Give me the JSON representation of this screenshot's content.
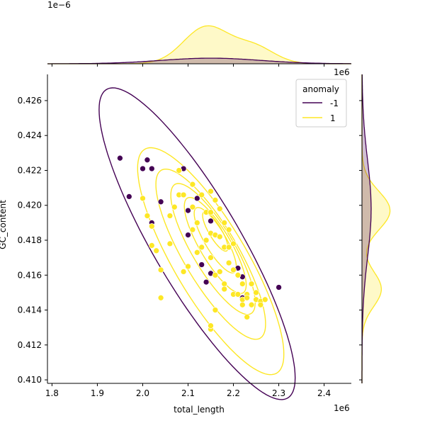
{
  "chart_data": {
    "type": "scatter",
    "title": "",
    "xlabel": "total_length",
    "ylabel": "GC_content",
    "x_offset_label": "1e6",
    "y_offset_label": "",
    "top_marginal_offset_label": "1e−6",
    "right_marginal_offset_label": "1e6",
    "xlim": [
      1.79,
      2.46
    ],
    "ylim": [
      0.4098,
      0.4275
    ],
    "xticks": [
      1.8,
      1.9,
      2.0,
      2.1,
      2.2,
      2.3,
      2.4
    ],
    "xtick_labels": [
      "1.8",
      "1.9",
      "2.0",
      "2.1",
      "2.2",
      "2.3",
      "2.4"
    ],
    "yticks": [
      0.41,
      0.412,
      0.414,
      0.416,
      0.418,
      0.42,
      0.422,
      0.424,
      0.426
    ],
    "ytick_labels": [
      "0.410",
      "0.412",
      "0.414",
      "0.416",
      "0.418",
      "0.420",
      "0.422",
      "0.424",
      "0.426"
    ],
    "grid": false,
    "legend": {
      "title": "anomaly",
      "placement": "top-right",
      "entries": [
        {
          "label": "-1",
          "color": "#440154"
        },
        {
          "label": "1",
          "color": "#fde725"
        }
      ]
    },
    "series": [
      {
        "name": "-1",
        "color": "#440154",
        "points": [
          [
            1.95,
            0.4227
          ],
          [
            1.97,
            0.4205
          ],
          [
            2.0,
            0.4221
          ],
          [
            2.01,
            0.4226
          ],
          [
            2.02,
            0.4221
          ],
          [
            2.02,
            0.419
          ],
          [
            2.04,
            0.4202
          ],
          [
            2.09,
            0.4221
          ],
          [
            2.1,
            0.4183
          ],
          [
            2.1,
            0.4197
          ],
          [
            2.12,
            0.4204
          ],
          [
            2.13,
            0.4166
          ],
          [
            2.14,
            0.4156
          ],
          [
            2.15,
            0.4191
          ],
          [
            2.15,
            0.4161
          ],
          [
            2.21,
            0.4164
          ],
          [
            2.22,
            0.4159
          ],
          [
            2.22,
            0.4147
          ],
          [
            2.23,
            0.4149
          ],
          [
            2.3,
            0.4153
          ]
        ]
      },
      {
        "name": "1",
        "color": "#fde725",
        "points": [
          [
            2.0,
            0.4204
          ],
          [
            2.01,
            0.4194
          ],
          [
            2.02,
            0.4188
          ],
          [
            2.02,
            0.4177
          ],
          [
            2.03,
            0.4174
          ],
          [
            2.04,
            0.4163
          ],
          [
            2.06,
            0.4194
          ],
          [
            2.06,
            0.4178
          ],
          [
            2.07,
            0.4199
          ],
          [
            2.08,
            0.422
          ],
          [
            2.08,
            0.4206
          ],
          [
            2.09,
            0.4206
          ],
          [
            2.09,
            0.4162
          ],
          [
            2.1,
            0.4165
          ],
          [
            2.11,
            0.4212
          ],
          [
            2.11,
            0.4199
          ],
          [
            2.11,
            0.4186
          ],
          [
            2.12,
            0.419
          ],
          [
            2.12,
            0.4173
          ],
          [
            2.13,
            0.4206
          ],
          [
            2.13,
            0.4176
          ],
          [
            2.14,
            0.4196
          ],
          [
            2.14,
            0.418
          ],
          [
            2.15,
            0.4208
          ],
          [
            2.15,
            0.4196
          ],
          [
            2.15,
            0.4184
          ],
          [
            2.15,
            0.417
          ],
          [
            2.16,
            0.4203
          ],
          [
            2.16,
            0.4183
          ],
          [
            2.16,
            0.416
          ],
          [
            2.17,
            0.4198
          ],
          [
            2.17,
            0.4182
          ],
          [
            2.17,
            0.4162
          ],
          [
            2.18,
            0.419
          ],
          [
            2.18,
            0.4176
          ],
          [
            2.18,
            0.4155
          ],
          [
            2.19,
            0.4186
          ],
          [
            2.19,
            0.4176
          ],
          [
            2.19,
            0.4167
          ],
          [
            2.2,
            0.4178
          ],
          [
            2.2,
            0.4163
          ],
          [
            2.2,
            0.4149
          ],
          [
            2.21,
            0.416
          ],
          [
            2.21,
            0.4149
          ],
          [
            2.22,
            0.4146
          ],
          [
            2.22,
            0.4143
          ],
          [
            2.22,
            0.4155
          ],
          [
            2.23,
            0.4149
          ],
          [
            2.23,
            0.4147
          ],
          [
            2.24,
            0.4155
          ],
          [
            2.24,
            0.4143
          ],
          [
            2.25,
            0.415
          ],
          [
            2.25,
            0.4146
          ],
          [
            2.26,
            0.4145
          ],
          [
            2.26,
            0.4143
          ],
          [
            2.27,
            0.4146
          ],
          [
            2.15,
            0.4129
          ],
          [
            2.15,
            0.4131
          ],
          [
            2.16,
            0.414
          ],
          [
            2.18,
            0.4152
          ],
          [
            2.23,
            0.4136
          ],
          [
            2.04,
            0.4147
          ]
        ]
      }
    ],
    "contours": [
      {
        "series": "-1",
        "color": "#440154",
        "levels": [
          {
            "center": [
              2.12,
              0.4178
            ],
            "sigma": [
              0.092,
              0.0038
            ],
            "rho": -0.86,
            "r": 2.35
          }
        ]
      },
      {
        "series": "1",
        "color": "#fde725",
        "levels": [
          {
            "center": [
              2.15,
              0.4168
            ],
            "sigma": [
              0.062,
              0.0025
            ],
            "rho": -0.82,
            "r": 2.6
          },
          {
            "center": [
              2.15,
              0.4172
            ],
            "sigma": [
              0.062,
              0.0025
            ],
            "rho": -0.82,
            "r": 1.95
          },
          {
            "center": [
              2.155,
              0.4175
            ],
            "sigma": [
              0.062,
              0.0025
            ],
            "rho": -0.82,
            "r": 1.5
          },
          {
            "center": [
              2.16,
              0.4177
            ],
            "sigma": [
              0.062,
              0.0025
            ],
            "rho": -0.82,
            "r": 1.1
          },
          {
            "center": [
              2.16,
              0.418
            ],
            "sigma": [
              0.062,
              0.0025
            ],
            "rho": -0.82,
            "r": 0.75
          },
          {
            "center": [
              2.16,
              0.4185
            ],
            "sigma": [
              0.062,
              0.0025
            ],
            "rho": -0.82,
            "r": 0.45
          }
        ]
      }
    ],
    "marginal_x": {
      "components": {
        "-1": [
          {
            "mu": 2.15,
            "sigma": 0.11,
            "weight": 0.11
          }
        ],
        "1": [
          {
            "mu": 2.14,
            "sigma": 0.05,
            "weight": 0.72
          },
          {
            "mu": 2.245,
            "sigma": 0.045,
            "weight": 0.33
          }
        ]
      }
    },
    "marginal_y": {
      "components": {
        "-1": [
          {
            "mu": 0.4198,
            "sigma": 0.0028,
            "weight": 0.18
          }
        ],
        "1": [
          {
            "mu": 0.4197,
            "sigma": 0.0011,
            "weight": 0.55
          },
          {
            "mu": 0.4152,
            "sigma": 0.001,
            "weight": 0.38
          }
        ]
      }
    }
  }
}
